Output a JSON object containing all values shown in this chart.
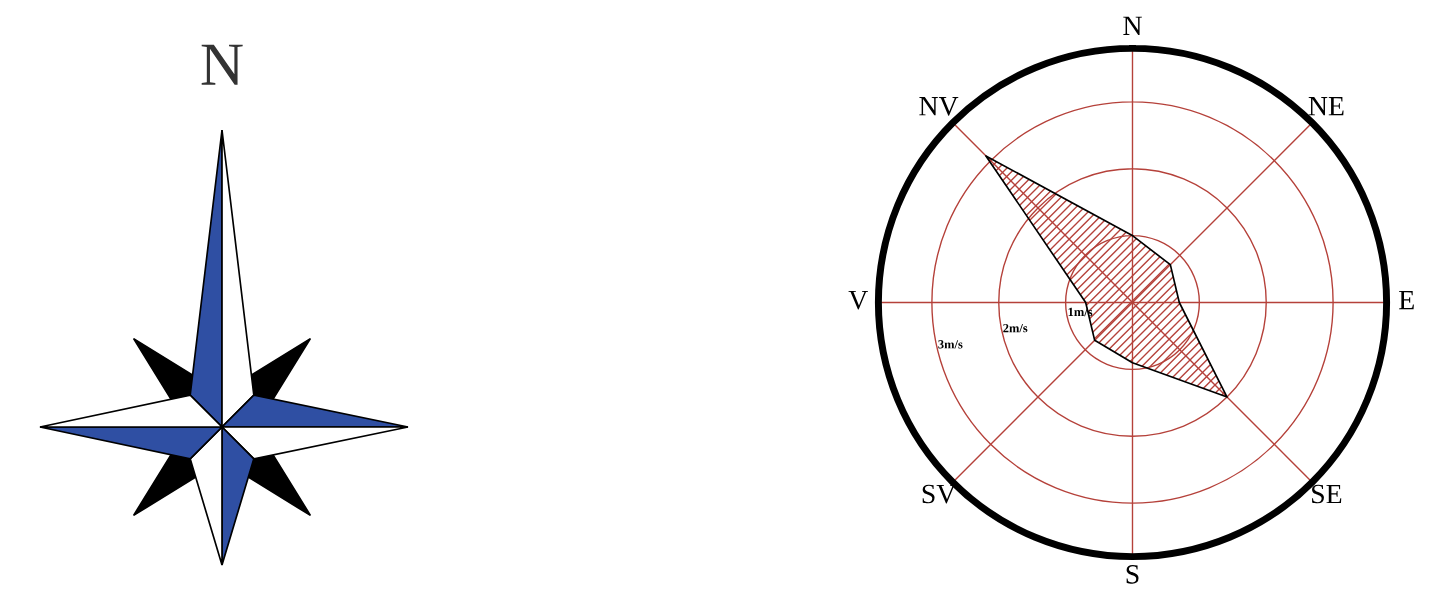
{
  "chart_data": {
    "type": "radar",
    "categories": [
      "N",
      "NE",
      "E",
      "SE",
      "S",
      "SV",
      "V",
      "NV"
    ],
    "series": [
      {
        "color": "#b5413a",
        "values": [
          1.0,
          0.8,
          0.7,
          2.0,
          0.9,
          0.8,
          0.7,
          3.1
        ]
      }
    ],
    "ylim": [
      0,
      3.8
    ],
    "yticks": [
      {
        "value": 1,
        "label": "1m/s"
      },
      {
        "value": 2,
        "label": "2m/s"
      },
      {
        "value": 3,
        "label": "3m/s"
      }
    ],
    "grid": true,
    "annotations": [
      "N"
    ]
  }
}
